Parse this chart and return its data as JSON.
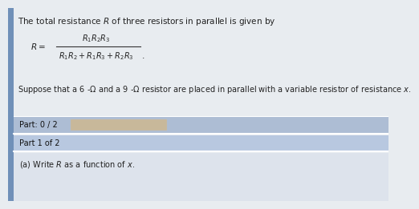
{
  "title_text": "The total resistance $R$ of three resistors in parallel is given by",
  "formula_lhs": "$R=$",
  "formula_num": "$R_1R_2R_3$",
  "formula_den": "$R_1R_2+R_1R_3+R_2R_3$",
  "suppose_text": "Suppose that a 6 -Ω and a 9 -Ω resistor are placed in parallel with a variable resistor of resistance $x$.",
  "part_label": "Part: 0 / 2",
  "part1_label": "Part 1 of 2",
  "part_a_text": "(a) Write $R$ as a function of $x$.",
  "bg_color": "#d8e0ea",
  "main_bg": "#e8ecf0",
  "white_bg": "#f5f5f5",
  "bar_color": "#adbdd4",
  "bar2_color": "#b8c8e0",
  "bottom_bg": "#dde3ec",
  "title_fontsize": 7.5,
  "body_fontsize": 7.5,
  "small_fontsize": 7.0,
  "formula_fontsize": 7.5
}
